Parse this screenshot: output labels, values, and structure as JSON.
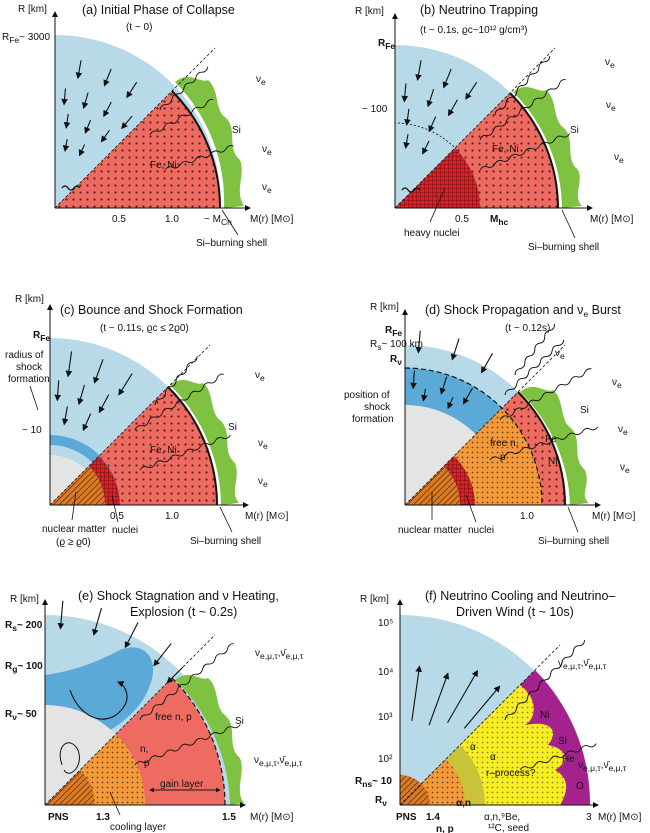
{
  "panels": [
    {
      "id": "a",
      "title": "(a)  Initial Phase of Collapse",
      "subtitle": "(t ~ 0)",
      "y_axis": "R [km]",
      "x_axis": "M(r) [M⊙]",
      "r_label": "R",
      "r_sub": "Fe",
      "r_value": "~ 3000",
      "ticks": [
        "0.5",
        "1.0"
      ],
      "ticks_extra": "~ M",
      "ticks_extra_sub": "Ch",
      "regions": [
        "Fe, Ni",
        "Si"
      ],
      "neutrino": "ν",
      "neutrino_sub": "e",
      "shell": "Si–burning shell"
    },
    {
      "id": "b",
      "title": "(b)  Neutrino Trapping",
      "subtitle": "(t ~ 0.1s, ϱc~10¹² g/cm³)",
      "y_axis": "R [km]",
      "x_axis": "M(r) [M⊙]",
      "r_label": "R",
      "r_sub": "Fe",
      "r_value": "~ 100",
      "ticks": [
        "0.5"
      ],
      "ticks_extra": "M",
      "ticks_extra_sub": "hc",
      "regions": [
        "Fe, Ni",
        "Si",
        "heavy nuclei"
      ],
      "neutrino": "ν",
      "neutrino_sub": "e",
      "shell": "Si–burning shell"
    },
    {
      "id": "c",
      "title": "(c)  Bounce and Shock Formation",
      "subtitle": "(t ~ 0.11s, ϱc ≤ 2ϱ0)",
      "y_axis": "R [km]",
      "x_axis": "M(r) [M⊙]",
      "r_label": "R",
      "r_sub": "Fe",
      "r_value": "~ 10",
      "ticks": [
        "0.5",
        "1.0"
      ],
      "regions": [
        "Fe, Ni",
        "Si",
        "nuclear matter",
        "(ϱ ≥ ϱ0)",
        "nuclei"
      ],
      "shock_note": [
        "radius of",
        "shock",
        "formation"
      ],
      "neutrino": "ν",
      "neutrino_sub": "e",
      "shell": "Si–burning shell"
    },
    {
      "id": "d",
      "title": "(d)  Shock Propagation and ν",
      "title_sub": "e",
      "title_end": " Burst",
      "subtitle": "(t ~ 0.12s)",
      "y_axis": "R [km]",
      "x_axis": "M(r) [M⊙]",
      "r_label": "R",
      "r_sub": "Fe",
      "r_nu": "R",
      "r_nu_sub": "ν",
      "r_s": "R",
      "r_s_sub": "s",
      "r_s_value": "~ 100 km",
      "ticks": [
        "1.0"
      ],
      "regions": [
        "Fe",
        "Ni",
        "Si",
        "free n,",
        "p",
        "nuclear matter",
        "nuclei"
      ],
      "shock_note": [
        "position of",
        "shock",
        "formation"
      ],
      "neutrino": "ν",
      "neutrino_sub": "e",
      "shell": "Si–burning shell"
    },
    {
      "id": "e",
      "title": "(e)  Shock Stagnation and ν Heating,",
      "title2": "Explosion  (t ~ 0.2s)",
      "y_axis": "R [km]",
      "x_axis": "M(r) [M⊙]",
      "r_s": "R",
      "r_s_sub": "s",
      "r_s_value": "~ 200",
      "r_g": "R",
      "r_g_sub": "g",
      "r_g_value": "~ 100",
      "r_nu": "R",
      "r_nu_sub": "ν",
      "r_nu_value": "~ 50",
      "ticks": [
        "PNS",
        "1.3",
        "1.5"
      ],
      "regions": [
        "free n, p",
        "Si",
        "n,",
        "p"
      ],
      "gain_layer": "gain layer",
      "cooling_layer": "cooling layer",
      "neutrino": "ν",
      "neutrino_sub": "e,μ,τ",
      "neutrino_bar": "ν̄",
      "nu_flux": "ν",
      "nu_flux_sub": "e,μ,τ",
      "nu_flux_bar": ",ν̄",
      "nu_flux_bar_sub": "e,μ,τ"
    },
    {
      "id": "f",
      "title": "(f)  Neutrino Cooling and Neutrino–",
      "title2": "Driven Wind  (t ~ 10s)",
      "y_axis": "R [km]",
      "x_axis": "M(r) [M⊙]",
      "y_ticks": [
        "10⁵",
        "10⁴",
        "10³",
        "10²"
      ],
      "r_ns": "R",
      "r_ns_sub": "ns",
      "r_ns_value": "~ 10",
      "r_nu": "R",
      "r_nu_sub": "ν",
      "ticks": [
        "PNS",
        "1.4",
        "3"
      ],
      "regions": [
        "Ni",
        "Si",
        "He",
        "O",
        "r–process?",
        "α",
        "α",
        "α,n",
        "n, p"
      ],
      "seed_note": [
        "α,n,⁹Be,",
        "¹²C, seed"
      ],
      "nu_flux": "ν",
      "nu_flux_sub": "e,μ,τ",
      "nu_flux_bar": ",ν̄",
      "nu_flux_bar_sub": "e,μ,τ"
    }
  ],
  "colors": {
    "outer_blue": "#b7d9e8",
    "mid_blue": "#5ba9d6",
    "red": "#ee6b62",
    "dark_red": "#d8202a",
    "orange": "#f39a3a",
    "green": "#7fc241",
    "gray": "#e4e4e4",
    "purple": "#a3228d",
    "yellow": "#f7ee23",
    "olive": "#c9c33a"
  }
}
